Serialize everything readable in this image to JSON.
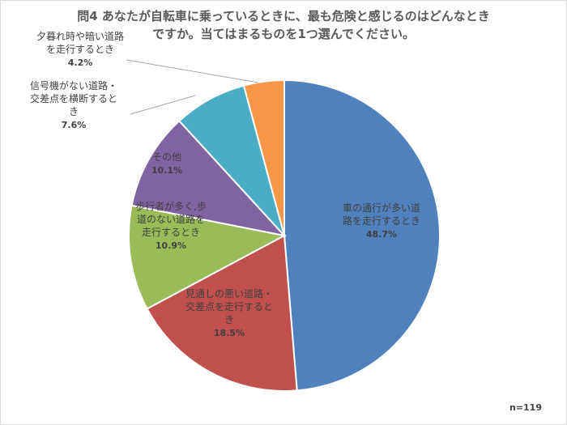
{
  "chart_data": {
    "type": "pie",
    "title": [
      "問4 あなたが自転車に乗っているときに、最も危険と感じるのはどんなとき",
      "ですか。当てはまるものを1つ選んでください。"
    ],
    "slices": [
      {
        "label": [
          "車の通行が多い道",
          "路を走行するとき"
        ],
        "value": 48.7,
        "value_text": "48.7%",
        "color": "#4f81bd"
      },
      {
        "label": [
          "見通しの悪い道路・",
          "交差点を走行すると",
          "き"
        ],
        "value": 18.5,
        "value_text": "18.5%",
        "color": "#c0504d"
      },
      {
        "label": [
          "歩行者が多く,歩",
          "道のない道路を",
          "走行するとき"
        ],
        "value": 10.9,
        "value_text": "10.9%",
        "color": "#9bbb59"
      },
      {
        "label": [
          "その他"
        ],
        "value": 10.1,
        "value_text": "10.1%",
        "color": "#8064a2"
      },
      {
        "label": [
          "信号機がない道路・",
          "交差点を横断すると",
          "き"
        ],
        "value": 7.6,
        "value_text": "7.6%",
        "color": "#4bacc6"
      },
      {
        "label": [
          "夕暮れ時や暗い道路",
          "を走行するとき"
        ],
        "value": 4.2,
        "value_text": "4.2%",
        "color": "#f79646"
      }
    ],
    "sample_size": "n=119",
    "legend": "none"
  }
}
